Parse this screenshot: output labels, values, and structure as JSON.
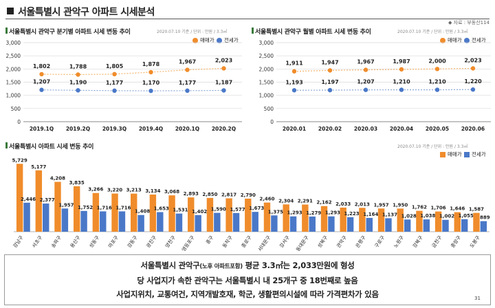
{
  "page": {
    "title": "서울특별시 관악구 아파트 시세분석",
    "source": "◆ 자료 : 부동산114",
    "page_number": "31"
  },
  "legend": {
    "sale": "매매가",
    "jeonse": "전세가"
  },
  "colors": {
    "sale": "#f08c2b",
    "jeonse": "#4a78c8",
    "line": "#8aa6d6"
  },
  "panels": {
    "quarterly": {
      "title": "서울특별시 관악구 분기별 아파트 시세 변동 추이",
      "meta": "2020.07.10 기준 / 단위 : 만원 / 3.3㎡"
    },
    "monthly": {
      "title": "서울특별시 관악구 월별 아파트 시세 변동 추이",
      "meta": "2020.07.10 기준 / 단위 : 만원 / 3.3㎡"
    },
    "district": {
      "title": "서울특별시 아파트 시세 변동 추이",
      "meta": "2020.07.10 기준 / 단위 : 만원 / 3.3㎡"
    }
  },
  "chart_data": [
    {
      "type": "line",
      "x": [
        "2019.1Q",
        "2019.2Q",
        "2019.3Q",
        "2019.4Q",
        "2020.1Q",
        "2020.2Q"
      ],
      "ylim": [
        0,
        3000
      ],
      "yticks": [
        "0",
        "500",
        "1,000",
        "1,500",
        "2,000",
        "2,500",
        "3,000"
      ],
      "series": [
        {
          "name": "매매가",
          "values": [
            1802,
            1788,
            1805,
            1878,
            1967,
            2023
          ],
          "labels": [
            "1,802",
            "1,788",
            "1,805",
            "1,878",
            "1,967",
            "2,023"
          ]
        },
        {
          "name": "전세가",
          "values": [
            1207,
            1190,
            1177,
            1170,
            1177,
            1187
          ],
          "labels": [
            "1,207",
            "1,190",
            "1,177",
            "1,170",
            "1,177",
            "1,187"
          ]
        }
      ],
      "grid": true,
      "legend": "top-right"
    },
    {
      "type": "line",
      "x": [
        "2020.01",
        "2020.02",
        "2020.03",
        "2020.04",
        "2020.05",
        "2020.06"
      ],
      "ylim": [
        0,
        3000
      ],
      "yticks": [
        "0",
        "500",
        "1,000",
        "1,500",
        "2,000",
        "2,500",
        "3,000"
      ],
      "series": [
        {
          "name": "매매가",
          "values": [
            1911,
            1947,
            1967,
            1987,
            2000,
            2023
          ],
          "labels": [
            "1,911",
            "1,947",
            "1,967",
            "1,987",
            "2,000",
            "2,023"
          ]
        },
        {
          "name": "전세가",
          "values": [
            1193,
            1197,
            1207,
            1210,
            1210,
            1220
          ],
          "labels": [
            "1,193",
            "1,197",
            "1,207",
            "1,210",
            "1,210",
            "1,220"
          ]
        }
      ],
      "grid": true,
      "legend": "top-right"
    },
    {
      "type": "bar",
      "categories": [
        "강남구",
        "서초구",
        "송파구",
        "용산구",
        "성동구",
        "마포구",
        "강동구",
        "광진구",
        "양천구",
        "영등포구",
        "중구",
        "동작구",
        "종로구",
        "서대문구",
        "강서구",
        "동대문구",
        "성북구",
        "관악구",
        "은평구",
        "구로구",
        "노원구",
        "강북구",
        "금천구",
        "중랑구",
        "도봉구"
      ],
      "ylim": [
        0,
        6500
      ],
      "series": [
        {
          "name": "매매가",
          "values": [
            5729,
            5177,
            4208,
            3835,
            3266,
            3220,
            3213,
            3134,
            3068,
            2893,
            2850,
            2817,
            2790,
            2460,
            2304,
            2291,
            2162,
            2033,
            2013,
            1957,
            1950,
            1762,
            1706,
            1646,
            1587
          ],
          "labels": [
            "5,729",
            "5,177",
            "4,208",
            "3,835",
            "3,266",
            "3,220",
            "3,213",
            "3,134",
            "3,068",
            "2,893",
            "2,850",
            "2,817",
            "2,790",
            "2,460",
            "2,304",
            "2,291",
            "2,162",
            "2,033",
            "2,013",
            "1,957",
            "1,950",
            "1,762",
            "1,706",
            "1,646",
            "1,587"
          ]
        },
        {
          "name": "전세가",
          "values": [
            2446,
            2377,
            1957,
            1752,
            1716,
            1716,
            1408,
            1653,
            1531,
            1402,
            1590,
            1577,
            1673,
            1375,
            1293,
            1279,
            1293,
            1223,
            1164,
            1137,
            1028,
            1038,
            1002,
            1055,
            889
          ],
          "labels": [
            "2,446",
            "2,377",
            "1,957",
            "1,752",
            "1,716",
            "1,716",
            "1,408",
            "1,653",
            "1,531",
            "1,402",
            "1,590",
            "1,577",
            "1,673",
            "1,375",
            "1,293",
            "1,279",
            "1,293",
            "1,223",
            "1,164",
            "1,137",
            "1,028",
            "1,038",
            "1,002",
            "1,055",
            "889"
          ]
        }
      ],
      "legend": "top-right"
    }
  ],
  "summary": {
    "line1_a": "서울특별시 관악구",
    "line1_b": "(노후 아파트포함)",
    "line1_c": " 평균 3.3㎡는 2,033만원에 형성",
    "line2": "당 사업지가 속한 관악구는 서울특별시 내 25개구 중 18번째로 높음",
    "line3": "사업지위치, 교통여건, 지역개발호재, 학군, 생활편의시설에 따라 가격편차가 있음"
  }
}
